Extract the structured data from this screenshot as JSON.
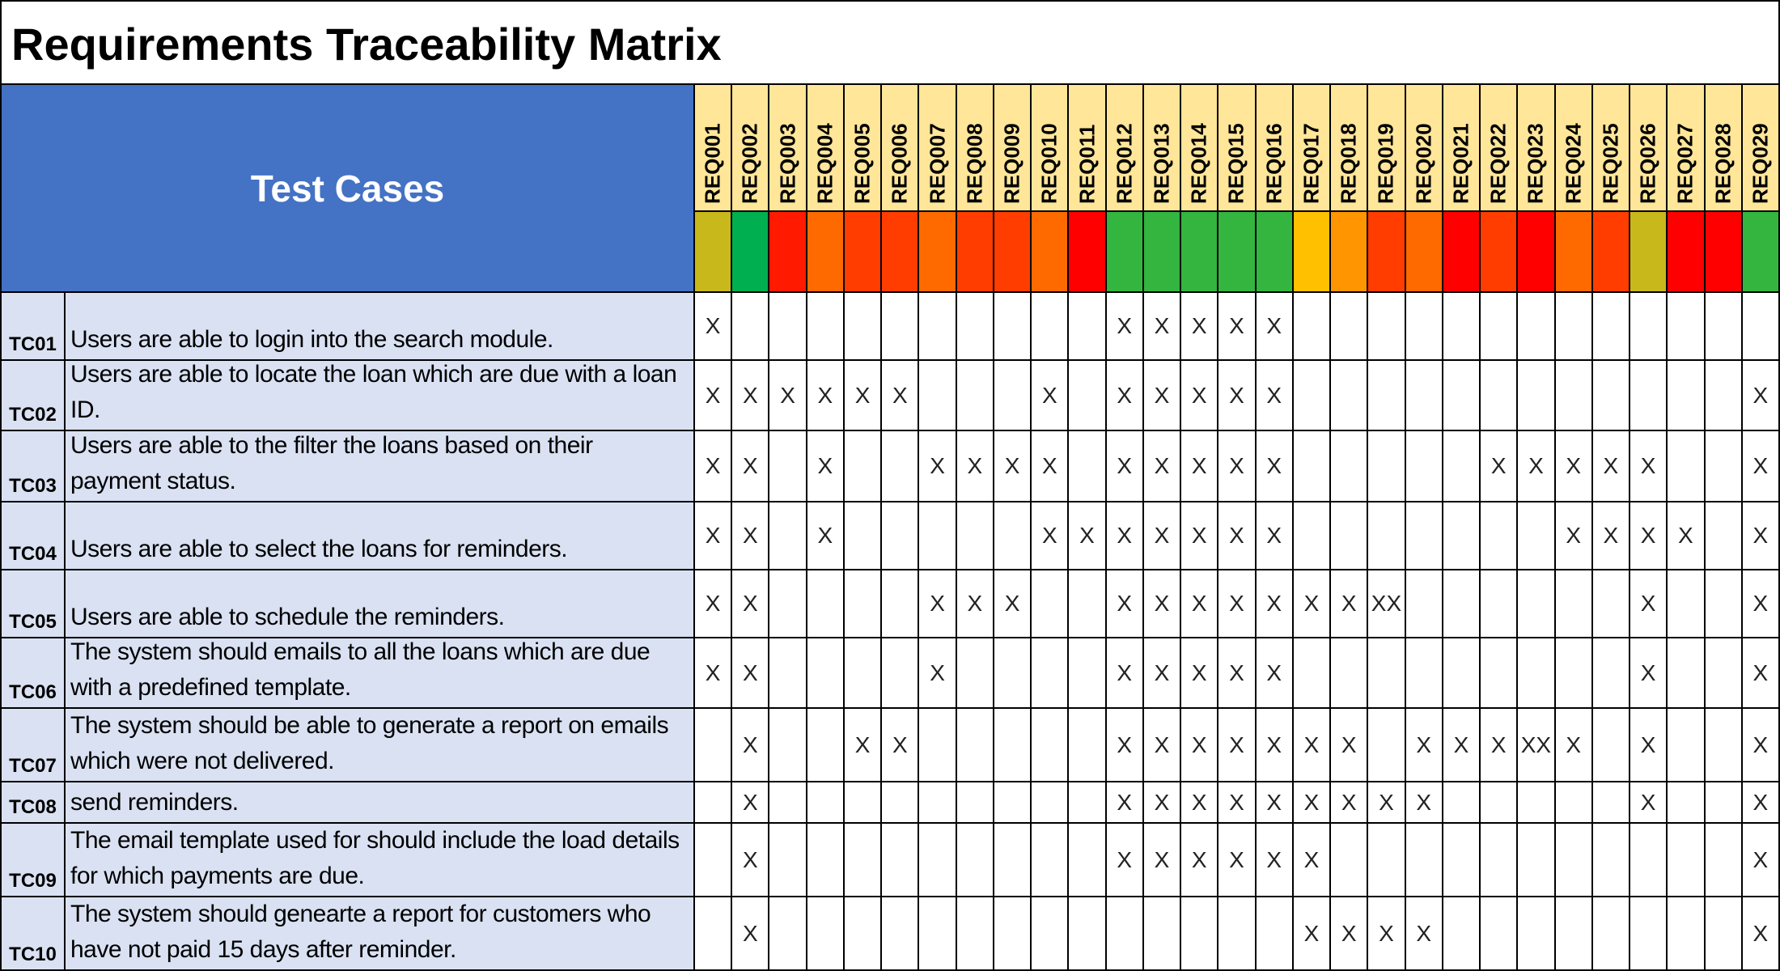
{
  "title": "Requirements Traceability Matrix",
  "header": "Test Cases",
  "requirements": [
    {
      "id": "REQ001",
      "color": "#c9b81c"
    },
    {
      "id": "REQ002",
      "color": "#00b050"
    },
    {
      "id": "REQ003",
      "color": "#ff1a00"
    },
    {
      "id": "REQ004",
      "color": "#ff6a00"
    },
    {
      "id": "REQ005",
      "color": "#ff3d00"
    },
    {
      "id": "REQ006",
      "color": "#ff3d00"
    },
    {
      "id": "REQ007",
      "color": "#ff6a00"
    },
    {
      "id": "REQ008",
      "color": "#ff3d00"
    },
    {
      "id": "REQ009",
      "color": "#ff3d00"
    },
    {
      "id": "REQ010",
      "color": "#ff6a00"
    },
    {
      "id": "REQ011",
      "color": "#ff0000"
    },
    {
      "id": "REQ012",
      "color": "#33b540"
    },
    {
      "id": "REQ013",
      "color": "#33b540"
    },
    {
      "id": "REQ014",
      "color": "#33b540"
    },
    {
      "id": "REQ015",
      "color": "#33b540"
    },
    {
      "id": "REQ016",
      "color": "#33b540"
    },
    {
      "id": "REQ017",
      "color": "#ffc000"
    },
    {
      "id": "REQ018",
      "color": "#ff9500"
    },
    {
      "id": "REQ019",
      "color": "#ff3d00"
    },
    {
      "id": "REQ020",
      "color": "#ff6a00"
    },
    {
      "id": "REQ021",
      "color": "#ff0000"
    },
    {
      "id": "REQ022",
      "color": "#ff3d00"
    },
    {
      "id": "REQ023",
      "color": "#ff0000"
    },
    {
      "id": "REQ024",
      "color": "#ff6a00"
    },
    {
      "id": "REQ025",
      "color": "#ff3d00"
    },
    {
      "id": "REQ026",
      "color": "#c9b81c"
    },
    {
      "id": "REQ027",
      "color": "#ff0000"
    },
    {
      "id": "REQ028",
      "color": "#ff0000"
    },
    {
      "id": "REQ029",
      "color": "#33b540"
    }
  ],
  "rows": [
    {
      "id": "TC01",
      "text": "Users are able to login into the search module.",
      "marks": [
        "X",
        null,
        null,
        null,
        null,
        null,
        null,
        null,
        null,
        null,
        null,
        "X",
        "X",
        "X",
        "X",
        "X",
        null,
        null,
        null,
        null,
        null,
        null,
        null,
        null,
        null,
        null,
        null,
        null,
        null
      ]
    },
    {
      "id": "TC02",
      "text": "Users are able to locate the loan which are due with a loan ID.",
      "marks": [
        "X",
        "X",
        "X",
        "X",
        "X",
        "X",
        null,
        null,
        null,
        "X",
        null,
        "X",
        "X",
        "X",
        "X",
        "X",
        null,
        null,
        null,
        null,
        null,
        null,
        null,
        null,
        null,
        null,
        null,
        null,
        "X"
      ]
    },
    {
      "id": "TC03",
      "text": "Users are able to the filter the loans based on their payment status.",
      "marks": [
        "X",
        "X",
        null,
        "X",
        null,
        null,
        "X",
        "X",
        "X",
        "X",
        null,
        "X",
        "X",
        "X",
        "X",
        "X",
        null,
        null,
        null,
        null,
        null,
        "X",
        "X",
        "X",
        "X",
        "X",
        null,
        null,
        "X"
      ]
    },
    {
      "id": "TC04",
      "text": "Users are able to select the loans for reminders.",
      "marks": [
        "X",
        "X",
        null,
        "X",
        null,
        null,
        null,
        null,
        null,
        "X",
        "X",
        "X",
        "X",
        "X",
        "X",
        "X",
        null,
        null,
        null,
        null,
        null,
        null,
        null,
        "X",
        "X",
        "X",
        "X",
        null,
        "X"
      ]
    },
    {
      "id": "TC05",
      "text": "Users are able to schedule the reminders.",
      "marks": [
        "X",
        "X",
        null,
        null,
        null,
        null,
        "X",
        "X",
        "X",
        null,
        null,
        "X",
        "X",
        "X",
        "X",
        "X",
        "X",
        "X",
        "XX",
        null,
        null,
        null,
        null,
        null,
        null,
        "X",
        null,
        null,
        "X"
      ]
    },
    {
      "id": "TC06",
      "text": "The system should emails to all the loans which are due with a predefined template.",
      "marks": [
        "X",
        "X",
        null,
        null,
        null,
        null,
        "X",
        null,
        null,
        null,
        null,
        "X",
        "X",
        "X",
        "X",
        "X",
        null,
        null,
        null,
        null,
        null,
        null,
        null,
        null,
        null,
        "X",
        null,
        null,
        "X"
      ]
    },
    {
      "id": "TC07",
      "text": "The system should be able to generate a report on emails which were not delivered.",
      "marks": [
        null,
        "X",
        null,
        null,
        "X",
        "X",
        null,
        null,
        null,
        null,
        null,
        "X",
        "X",
        "X",
        "X",
        "X",
        "X",
        "X",
        null,
        "X",
        "X",
        "X",
        "XX",
        "X",
        null,
        "X",
        null,
        null,
        "X"
      ]
    },
    {
      "id": "TC08",
      "text": "send reminders.",
      "marks": [
        null,
        "X",
        null,
        null,
        null,
        null,
        null,
        null,
        null,
        null,
        null,
        "X",
        "X",
        "X",
        "X",
        "X",
        "X",
        "X",
        "X",
        "X",
        null,
        null,
        null,
        null,
        null,
        "X",
        null,
        null,
        "X"
      ]
    },
    {
      "id": "TC09",
      "text": "The email template used for should include the load details for which payments are due.",
      "marks": [
        null,
        "X",
        null,
        null,
        null,
        null,
        null,
        null,
        null,
        null,
        null,
        "X",
        "X",
        "X",
        "X",
        "X",
        "X",
        null,
        null,
        null,
        null,
        null,
        null,
        null,
        null,
        null,
        null,
        null,
        "X"
      ]
    },
    {
      "id": "TC10",
      "text": "The system should genearte a report for customers who have not paid 15 days after reminder.",
      "marks": [
        null,
        "X",
        null,
        null,
        null,
        null,
        null,
        null,
        null,
        null,
        null,
        null,
        null,
        null,
        null,
        null,
        "X",
        "X",
        "X",
        "X",
        null,
        null,
        null,
        null,
        null,
        null,
        null,
        null,
        "X"
      ]
    }
  ]
}
